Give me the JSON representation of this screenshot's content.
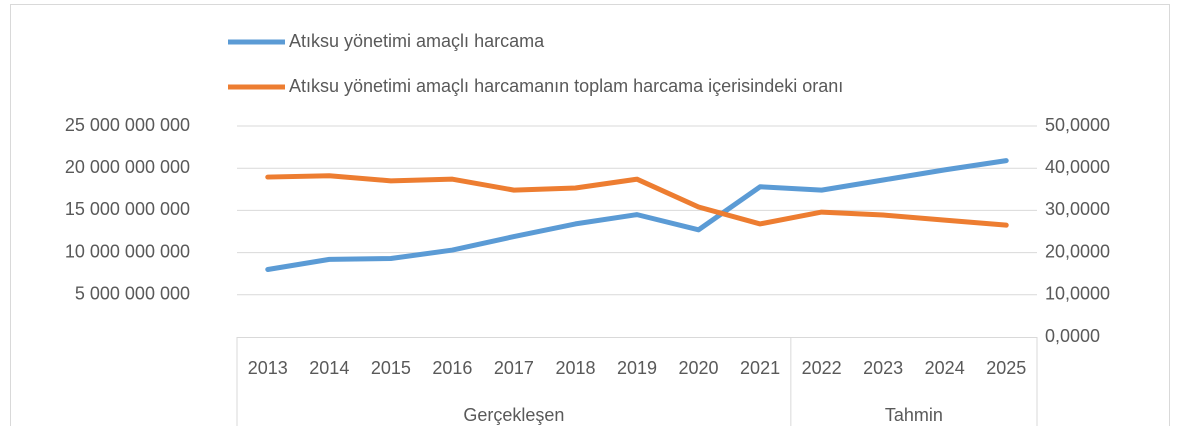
{
  "chart_data": {
    "type": "line",
    "categories": [
      "2013",
      "2014",
      "2015",
      "2016",
      "2017",
      "2018",
      "2019",
      "2020",
      "2021",
      "2022",
      "2023",
      "2024",
      "2025"
    ],
    "groups": [
      {
        "label": "Gerçekleşen",
        "first": "2013",
        "last": "2021"
      },
      {
        "label": "Tahmin",
        "first": "2022",
        "last": "2025"
      }
    ],
    "series": [
      {
        "name": "Atıksu yönetimi amaçlı harcama",
        "color": "#5b9bd5",
        "axis": "y",
        "values": [
          8000000000,
          9200000000,
          9300000000,
          10300000000,
          11900000000,
          13400000000,
          14500000000,
          12700000000,
          17800000000,
          17400000000,
          18600000000,
          19800000000,
          20900000000
        ]
      },
      {
        "name": "Atıksu yönetimi amaçlı harcamanın toplam harcama içerisindeki oranı",
        "color": "#ed7d31",
        "axis": "y2",
        "values": [
          37.9,
          38.2,
          37.0,
          37.4,
          34.8,
          35.3,
          37.4,
          30.8,
          26.8,
          29.6,
          28.9,
          27.7,
          26.5
        ]
      }
    ],
    "ylim": [
      0,
      25000000000
    ],
    "yticks": [
      {
        "value": 5000000000,
        "label": "5 000 000 000"
      },
      {
        "value": 10000000000,
        "label": "10 000 000 000"
      },
      {
        "value": 15000000000,
        "label": "15 000 000 000"
      },
      {
        "value": 20000000000,
        "label": "20 000 000 000"
      },
      {
        "value": 25000000000,
        "label": "25 000 000 000"
      }
    ],
    "y2lim": [
      0,
      50
    ],
    "y2ticks": [
      {
        "value": 0,
        "label": "0,0000"
      },
      {
        "value": 10,
        "label": "10,0000"
      },
      {
        "value": 20,
        "label": "20,0000"
      },
      {
        "value": 30,
        "label": "30,0000"
      },
      {
        "value": 40,
        "label": "40,0000"
      },
      {
        "value": 50,
        "label": "50,0000"
      }
    ],
    "grid": true,
    "legend": "top"
  }
}
